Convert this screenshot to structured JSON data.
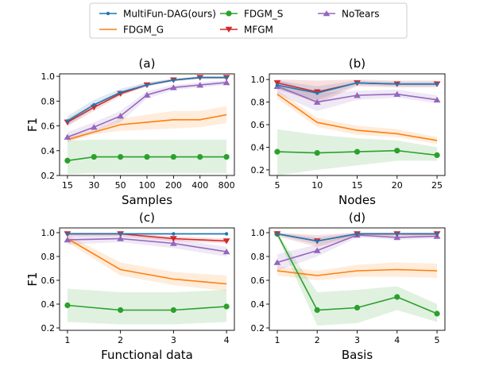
{
  "colors": {
    "MultiFun-DAG(ours)": "#1f77b4",
    "FDGM_G": "#ff7f0e",
    "FDGM_S": "#2ca02c",
    "MFGM": "#d62728",
    "NoTears": "#9467bd"
  },
  "legend": {
    "placement": "top-center",
    "entries": [
      {
        "name": "MultiFun-DAG(ours)",
        "marker": "dot"
      },
      {
        "name": "FDGM_G",
        "marker": "none"
      },
      {
        "name": "FDGM_S",
        "marker": "circle"
      },
      {
        "name": "MFGM",
        "marker": "triangle-down"
      },
      {
        "name": "NoTears",
        "marker": "triangle-up"
      }
    ]
  },
  "chart_data": [
    {
      "type": "line",
      "title": "(a)",
      "xlabel": "Samples",
      "ylabel": "F1",
      "categories": [
        "15",
        "30",
        "50",
        "100",
        "200",
        "400",
        "800"
      ],
      "ylim": [
        0.2,
        1.02
      ],
      "yticks": [
        "0.2",
        "0.4",
        "0.6",
        "0.8",
        "1.0"
      ],
      "ytick_values": [
        0.2,
        0.4,
        0.6,
        0.8,
        1.0
      ],
      "series": [
        {
          "name": "FDGM_G",
          "values": [
            0.49,
            0.55,
            0.61,
            0.63,
            0.65,
            0.65,
            0.69
          ],
          "lower": [
            0.47,
            0.53,
            0.56,
            0.57,
            0.58,
            0.59,
            0.62
          ],
          "upper": [
            0.51,
            0.57,
            0.66,
            0.69,
            0.72,
            0.72,
            0.76
          ]
        },
        {
          "name": "FDGM_S",
          "values": [
            0.32,
            0.35,
            0.35,
            0.35,
            0.35,
            0.35,
            0.35
          ],
          "lower": [
            0.21,
            0.22,
            0.22,
            0.22,
            0.22,
            0.22,
            0.22
          ],
          "upper": [
            0.48,
            0.49,
            0.49,
            0.49,
            0.49,
            0.49,
            0.49
          ]
        },
        {
          "name": "NoTears",
          "values": [
            0.51,
            0.59,
            0.68,
            0.85,
            0.91,
            0.93,
            0.95
          ],
          "lower": [
            0.47,
            0.55,
            0.63,
            0.82,
            0.89,
            0.91,
            0.93
          ],
          "upper": [
            0.55,
            0.63,
            0.72,
            0.88,
            0.93,
            0.95,
            0.97
          ]
        },
        {
          "name": "MFGM",
          "values": [
            0.63,
            0.75,
            0.86,
            0.93,
            0.97,
            0.99,
            0.99
          ],
          "lower": [
            0.6,
            0.72,
            0.84,
            0.92,
            0.96,
            0.98,
            0.98
          ],
          "upper": [
            0.66,
            0.78,
            0.88,
            0.95,
            0.98,
            1.0,
            1.0
          ]
        },
        {
          "name": "MultiFun-DAG(ours)",
          "values": [
            0.64,
            0.77,
            0.87,
            0.93,
            0.97,
            0.99,
            0.99
          ],
          "lower": [
            0.6,
            0.74,
            0.85,
            0.92,
            0.96,
            0.98,
            0.98
          ],
          "upper": [
            0.68,
            0.81,
            0.9,
            0.95,
            0.98,
            1.0,
            1.0
          ]
        }
      ]
    },
    {
      "type": "line",
      "title": "(b)",
      "xlabel": "Nodes",
      "ylabel": "",
      "categories": [
        "5",
        "10",
        "15",
        "20",
        "25"
      ],
      "ylim": [
        0.15,
        1.05
      ],
      "yticks": [
        "0.2",
        "0.4",
        "0.6",
        "0.8",
        "1.0"
      ],
      "ytick_values": [
        0.2,
        0.4,
        0.6,
        0.8,
        1.0
      ],
      "series": [
        {
          "name": "FDGM_G",
          "values": [
            0.87,
            0.62,
            0.55,
            0.52,
            0.46
          ],
          "lower": [
            0.83,
            0.58,
            0.51,
            0.49,
            0.43
          ],
          "upper": [
            0.91,
            0.66,
            0.59,
            0.56,
            0.49
          ]
        },
        {
          "name": "FDGM_S",
          "values": [
            0.36,
            0.35,
            0.36,
            0.37,
            0.33
          ],
          "lower": [
            0.15,
            0.2,
            0.24,
            0.28,
            0.28
          ],
          "upper": [
            0.56,
            0.51,
            0.48,
            0.46,
            0.4
          ]
        },
        {
          "name": "NoTears",
          "values": [
            0.94,
            0.8,
            0.86,
            0.87,
            0.82
          ],
          "lower": [
            0.87,
            0.72,
            0.82,
            0.84,
            0.79
          ],
          "upper": [
            1.0,
            0.88,
            0.9,
            0.91,
            0.86
          ]
        },
        {
          "name": "MFGM",
          "values": [
            0.97,
            0.89,
            0.97,
            0.96,
            0.96
          ],
          "lower": [
            0.92,
            0.79,
            0.94,
            0.93,
            0.93
          ],
          "upper": [
            1.0,
            0.99,
            1.0,
            0.99,
            0.99
          ]
        },
        {
          "name": "MultiFun-DAG(ours)",
          "values": [
            0.95,
            0.88,
            0.97,
            0.96,
            0.96
          ],
          "lower": [
            0.91,
            0.82,
            0.95,
            0.94,
            0.94
          ],
          "upper": [
            0.99,
            0.94,
            0.99,
            0.98,
            0.98
          ]
        }
      ]
    },
    {
      "type": "line",
      "title": "(c)",
      "xlabel": "Functional data",
      "ylabel": "F1",
      "categories": [
        "1",
        "2",
        "3",
        "4"
      ],
      "ylim": [
        0.18,
        1.04
      ],
      "yticks": [
        "0.2",
        "0.4",
        "0.6",
        "0.8",
        "1.0"
      ],
      "ytick_values": [
        0.2,
        0.4,
        0.6,
        0.8,
        1.0
      ],
      "series": [
        {
          "name": "FDGM_G",
          "values": [
            0.95,
            0.69,
            0.61,
            0.57
          ],
          "lower": [
            0.92,
            0.64,
            0.56,
            0.51
          ],
          "upper": [
            0.98,
            0.75,
            0.67,
            0.64
          ]
        },
        {
          "name": "FDGM_S",
          "values": [
            0.39,
            0.35,
            0.35,
            0.38
          ],
          "lower": [
            0.25,
            0.23,
            0.23,
            0.25
          ],
          "upper": [
            0.53,
            0.5,
            0.5,
            0.52
          ]
        },
        {
          "name": "NoTears",
          "values": [
            0.94,
            0.95,
            0.91,
            0.84
          ],
          "lower": [
            0.9,
            0.92,
            0.87,
            0.8
          ],
          "upper": [
            0.98,
            0.98,
            0.95,
            0.88
          ]
        },
        {
          "name": "MFGM",
          "values": [
            0.99,
            0.99,
            0.95,
            0.93
          ],
          "lower": [
            0.97,
            0.97,
            0.93,
            0.91
          ],
          "upper": [
            1.0,
            1.0,
            0.97,
            0.95
          ]
        },
        {
          "name": "MultiFun-DAG(ours)",
          "values": [
            0.99,
            0.99,
            0.99,
            0.99
          ],
          "lower": [
            0.98,
            0.98,
            0.98,
            0.98
          ],
          "upper": [
            1.0,
            1.0,
            1.0,
            1.0
          ]
        }
      ]
    },
    {
      "type": "line",
      "title": "(d)",
      "xlabel": "Basis",
      "ylabel": "",
      "categories": [
        "1",
        "2",
        "3",
        "4",
        "5"
      ],
      "ylim": [
        0.18,
        1.04
      ],
      "yticks": [
        "0.2",
        "0.4",
        "0.6",
        "0.8",
        "1.0"
      ],
      "ytick_values": [
        0.2,
        0.4,
        0.6,
        0.8,
        1.0
      ],
      "series": [
        {
          "name": "FDGM_G",
          "values": [
            0.68,
            0.64,
            0.68,
            0.69,
            0.68
          ],
          "lower": [
            0.64,
            0.6,
            0.63,
            0.63,
            0.62
          ],
          "upper": [
            0.72,
            0.68,
            0.73,
            0.75,
            0.74
          ]
        },
        {
          "name": "FDGM_S",
          "values": [
            0.99,
            0.35,
            0.37,
            0.46,
            0.32
          ],
          "lower": [
            0.97,
            0.22,
            0.24,
            0.35,
            0.25
          ],
          "upper": [
            1.0,
            0.5,
            0.52,
            0.55,
            0.4
          ]
        },
        {
          "name": "NoTears",
          "values": [
            0.75,
            0.85,
            0.98,
            0.96,
            0.97
          ],
          "lower": [
            0.68,
            0.8,
            0.96,
            0.94,
            0.95
          ],
          "upper": [
            0.82,
            0.9,
            1.0,
            0.98,
            0.99
          ]
        },
        {
          "name": "MFGM",
          "values": [
            0.99,
            0.93,
            0.99,
            0.99,
            0.99
          ],
          "lower": [
            0.97,
            0.88,
            0.97,
            0.97,
            0.97
          ],
          "upper": [
            1.0,
            0.98,
            1.0,
            1.0,
            1.0
          ]
        },
        {
          "name": "MultiFun-DAG(ours)",
          "values": [
            0.99,
            0.93,
            0.99,
            0.99,
            0.99
          ],
          "lower": [
            0.98,
            0.9,
            0.98,
            0.98,
            0.98
          ],
          "upper": [
            1.0,
            0.96,
            1.0,
            1.0,
            1.0
          ]
        }
      ]
    }
  ]
}
